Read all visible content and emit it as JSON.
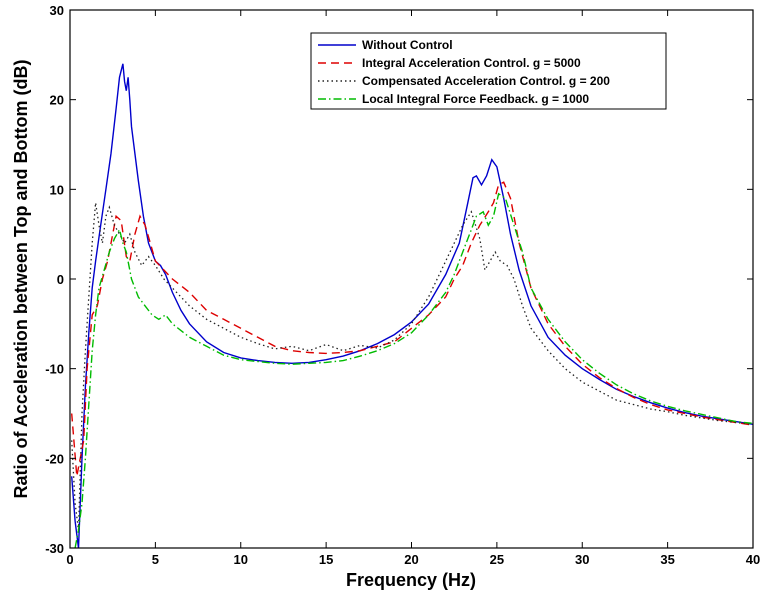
{
  "chart_data": {
    "type": "line",
    "title": "",
    "xlabel": "Frequency (Hz)",
    "ylabel": "Ratio of Acceleration between Top and Bottom (dB)",
    "xlim": [
      0,
      40
    ],
    "ylim": [
      -30,
      30
    ],
    "xticks": [
      0,
      5,
      10,
      15,
      20,
      25,
      30,
      35,
      40
    ],
    "yticks": [
      -30,
      -20,
      -10,
      0,
      10,
      20,
      30
    ],
    "grid": false,
    "legend_position": "top-right",
    "series": [
      {
        "name": "Without Control",
        "color": "#0000cc",
        "style": "solid",
        "x": [
          0.1,
          0.3,
          0.5,
          0.7,
          0.9,
          1.1,
          1.3,
          1.5,
          1.8,
          2.1,
          2.4,
          2.7,
          2.9,
          3.1,
          3.2,
          3.3,
          3.4,
          3.5,
          3.6,
          3.8,
          4.0,
          4.3,
          4.6,
          5.0,
          5.3,
          5.6,
          6.0,
          6.5,
          7.0,
          8.0,
          9.0,
          10.0,
          11.0,
          12.0,
          13.0,
          14.0,
          15.0,
          16.0,
          17.0,
          18.0,
          19.0,
          20.0,
          21.0,
          22.0,
          22.8,
          23.3,
          23.6,
          23.8,
          24.1,
          24.4,
          24.7,
          25.0,
          25.4,
          25.8,
          26.3,
          27.0,
          28.0,
          29.0,
          30.0,
          31.0,
          32.0,
          33.0,
          34.0,
          35.0,
          36.0,
          37.0,
          38.0,
          39.0,
          40.0
        ],
        "y": [
          -22,
          -27,
          -30,
          -20,
          -12,
          -6,
          -1,
          2,
          6,
          10,
          14,
          19,
          22.5,
          24,
          22,
          21,
          22.5,
          20,
          17,
          14,
          11,
          7,
          4,
          2,
          1.5,
          0.5,
          -1.5,
          -3.5,
          -5,
          -7,
          -8.2,
          -8.8,
          -9.1,
          -9.3,
          -9.4,
          -9.3,
          -9,
          -8.6,
          -8,
          -7.2,
          -6.2,
          -4.8,
          -2.8,
          0.5,
          4,
          8.5,
          11.3,
          11.5,
          10.5,
          11.5,
          13.3,
          12.5,
          9,
          5,
          1,
          -3,
          -6.5,
          -8.5,
          -10,
          -11.2,
          -12.3,
          -13.1,
          -13.8,
          -14.4,
          -14.9,
          -15.3,
          -15.6,
          -15.9,
          -16.2
        ]
      },
      {
        "name": "Integral Acceleration Control.  g = 5000",
        "color": "#dd0000",
        "style": "dashed",
        "x": [
          0.1,
          0.4,
          0.8,
          1.0,
          1.3,
          1.6,
          1.9,
          2.2,
          2.5,
          2.7,
          3.0,
          3.3,
          3.5,
          3.8,
          4.1,
          4.4,
          4.7,
          5.0,
          5.5,
          6.0,
          7.0,
          8.0,
          9.0,
          10.0,
          11.0,
          12.0,
          13.0,
          14.0,
          15.0,
          16.0,
          17.0,
          18.0,
          19.0,
          20.0,
          21.0,
          22.0,
          22.5,
          23.0,
          23.5,
          24.0,
          24.5,
          24.8,
          25.1,
          25.4,
          25.8,
          26.3,
          27.0,
          28.0,
          29.0,
          30.0,
          31.0,
          32.0,
          33.0,
          34.0,
          35.0,
          36.0,
          37.0,
          38.0,
          39.0,
          40.0
        ],
        "y": [
          -15,
          -22,
          -18,
          -10,
          -4,
          -3,
          0,
          2,
          5,
          7,
          6.5,
          2.5,
          2,
          5,
          7,
          6,
          4,
          2,
          1,
          0,
          -1.5,
          -3.5,
          -4.5,
          -5.5,
          -6.5,
          -7.5,
          -8,
          -8.2,
          -8.3,
          -8.2,
          -8,
          -7.5,
          -7,
          -5.5,
          -4,
          -2,
          0,
          1.5,
          4,
          6,
          7.5,
          8.5,
          10.5,
          10.8,
          9,
          4,
          -1,
          -5,
          -7.5,
          -9.5,
          -11,
          -12.2,
          -13.2,
          -14,
          -14.6,
          -15,
          -15.4,
          -15.7,
          -16,
          -16.3
        ]
      },
      {
        "name": "Compensated Acceleration Control. g = 200",
        "color": "#222222",
        "style": "dotted",
        "x": [
          0.1,
          0.3,
          0.5,
          0.7,
          0.9,
          1.1,
          1.3,
          1.5,
          1.7,
          1.9,
          2.1,
          2.3,
          2.6,
          2.9,
          3.2,
          3.5,
          3.8,
          4.2,
          4.6,
          5.0,
          5.5,
          6.0,
          7.0,
          8.0,
          9.0,
          10.0,
          11.0,
          12.0,
          13.0,
          14.0,
          15.0,
          16.0,
          17.0,
          18.0,
          19.0,
          20.0,
          21.0,
          22.0,
          23.0,
          23.5,
          24.0,
          24.3,
          24.6,
          24.9,
          25.2,
          25.6,
          26.0,
          26.5,
          27.0,
          28.0,
          29.0,
          30.0,
          31.0,
          32.0,
          33.0,
          34.0,
          35.0,
          36.0,
          37.0,
          38.0,
          39.0,
          40.0
        ],
        "y": [
          -18,
          -25,
          -28,
          -15,
          -8,
          -2,
          4,
          8.5,
          6,
          4,
          7,
          8,
          6,
          5,
          4,
          5,
          3,
          1.5,
          2.5,
          1.5,
          0,
          -1,
          -3,
          -4.5,
          -5.5,
          -6.5,
          -7.2,
          -7.8,
          -7.5,
          -8,
          -7.3,
          -8,
          -7.4,
          -7.7,
          -6.8,
          -5,
          -2,
          2,
          6,
          7.5,
          4.5,
          1,
          2,
          3,
          2,
          1.5,
          0,
          -3,
          -5.5,
          -8,
          -10,
          -11.5,
          -12.5,
          -13.5,
          -14,
          -14.5,
          -14.8,
          -15.2,
          -15.5,
          -15.8,
          -16,
          -16.2
        ]
      },
      {
        "name": "Local Integral Force Feedback. g = 1000",
        "color": "#00bb00",
        "style": "dashdot",
        "x": [
          0.3,
          0.5,
          0.7,
          0.9,
          1.1,
          1.3,
          1.5,
          1.7,
          2.0,
          2.3,
          2.6,
          2.9,
          3.1,
          3.3,
          3.6,
          4.0,
          4.4,
          4.8,
          5.2,
          5.6,
          6.0,
          7.0,
          8.0,
          9.0,
          10.0,
          11.0,
          12.0,
          13.0,
          14.0,
          15.0,
          16.0,
          17.0,
          18.0,
          19.0,
          20.0,
          21.0,
          22.0,
          22.5,
          23.0,
          23.5,
          23.8,
          24.2,
          24.5,
          24.8,
          25.1,
          25.5,
          26.0,
          26.5,
          27.0,
          28.0,
          29.0,
          30.0,
          31.0,
          32.0,
          33.0,
          34.0,
          35.0,
          36.0,
          37.0,
          38.0,
          39.0,
          40.0
        ],
        "y": [
          -30,
          -28,
          -25,
          -20,
          -14,
          -8,
          -4,
          -1,
          1,
          3,
          4.5,
          5.5,
          4,
          3,
          0,
          -2,
          -3,
          -4,
          -4.5,
          -4,
          -5,
          -6.5,
          -7.5,
          -8.5,
          -9,
          -9.2,
          -9.4,
          -9.5,
          -9.4,
          -9.3,
          -9.1,
          -8.6,
          -8,
          -7.2,
          -6,
          -4,
          -1.5,
          0.5,
          3,
          5.5,
          7,
          7.5,
          6,
          7,
          9.5,
          9,
          6,
          3,
          -1,
          -4.5,
          -7,
          -9,
          -10.5,
          -11.8,
          -12.8,
          -13.6,
          -14.2,
          -14.7,
          -15.1,
          -15.5,
          -15.9,
          -16.1
        ]
      }
    ]
  }
}
